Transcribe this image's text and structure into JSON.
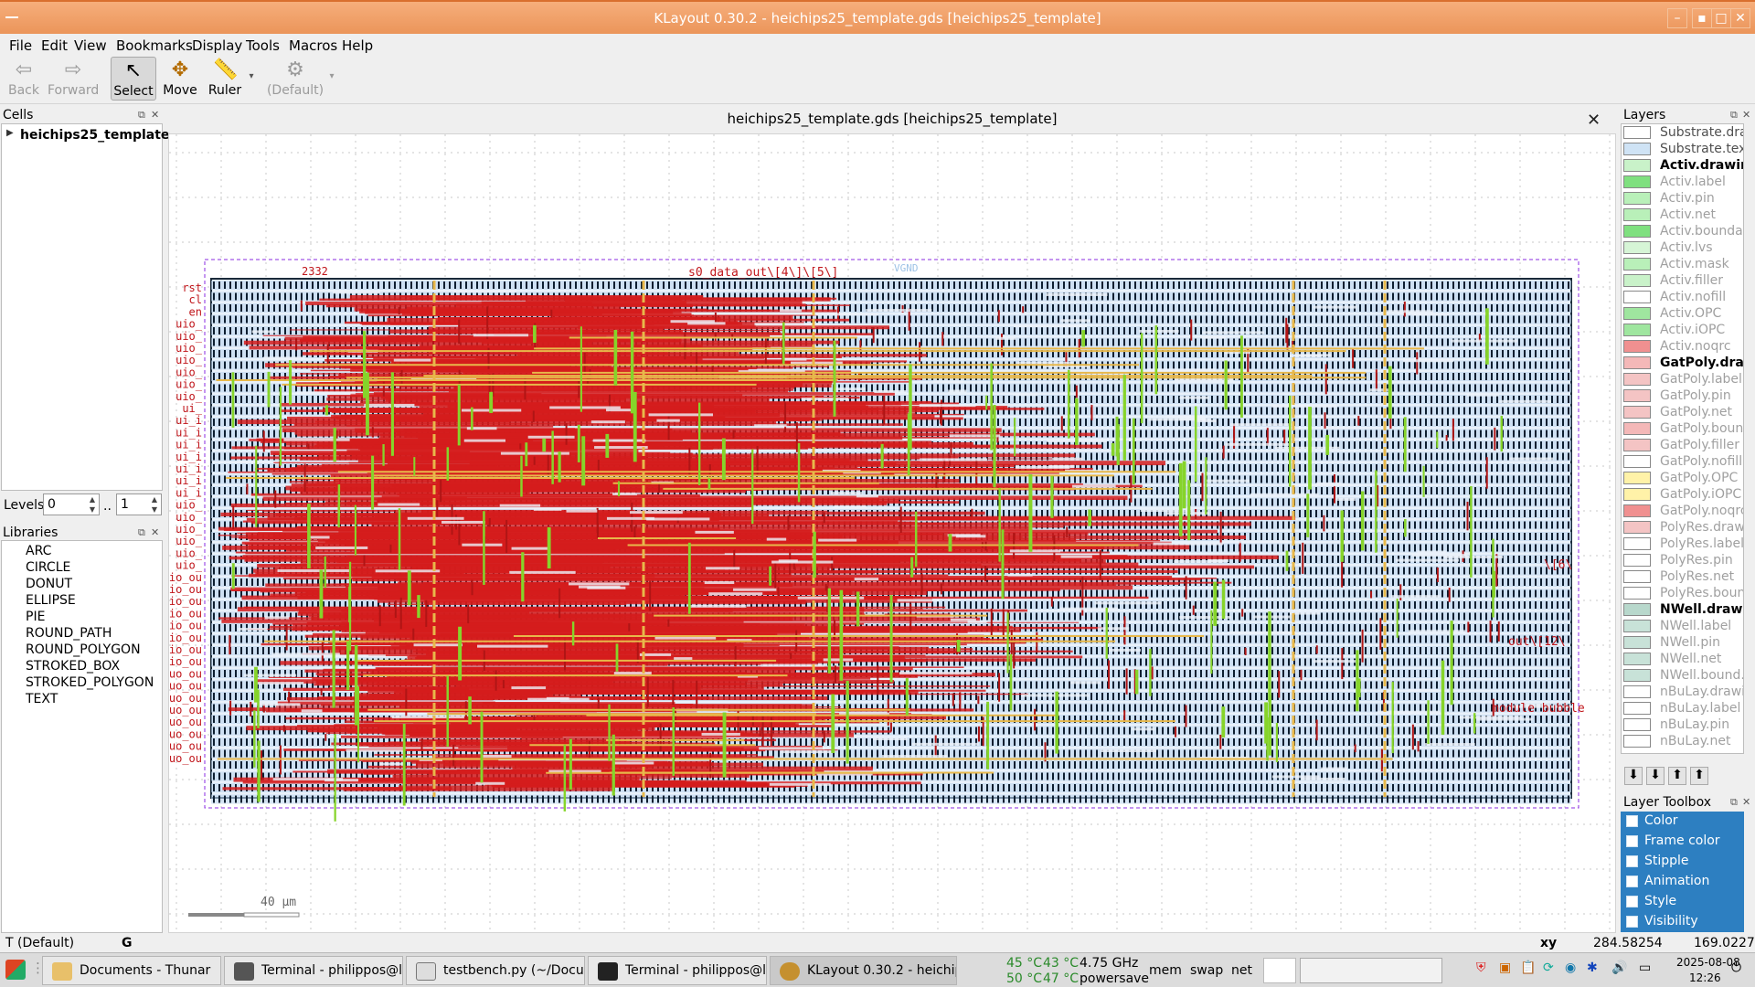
{
  "window": {
    "title": "KLayout 0.30.2 - heichips25_template.gds [heichips25_template]"
  },
  "menu": [
    "File",
    "Edit",
    "View",
    "Bookmarks",
    "Display",
    "Tools",
    "Macros",
    "Help"
  ],
  "toolbar": {
    "back": "Back",
    "forward": "Forward",
    "select": "Select",
    "move": "Move",
    "ruler": "Ruler",
    "default": "(Default)"
  },
  "cells": {
    "title": "Cells",
    "root": "heichips25_template"
  },
  "levels": {
    "label": "Levels",
    "from": "0",
    "sep": "..",
    "to": "1"
  },
  "libraries": {
    "title": "Libraries",
    "items": [
      "ARC",
      "CIRCLE",
      "DONUT",
      "ELLIPSE",
      "PIE",
      "ROUND_PATH",
      "ROUND_POLYGON",
      "STROKED_BOX",
      "STROKED_POLYGON",
      "TEXT"
    ]
  },
  "view": {
    "tab_title": "heichips25_template.gds [heichips25_template]",
    "scale": "40 µm"
  },
  "layout_texts": {
    "pins_left": [
      "rst",
      "cl",
      "en",
      "uio_",
      "uio_",
      "uio_",
      "uio_",
      "uio_",
      "uio_",
      "uio_",
      "ui_",
      "ui_i",
      "ui_i",
      "ui_i",
      "ui_i",
      "ui_i",
      "ui_i",
      "ui_i",
      "uio_",
      "uio_",
      "uio_",
      "uio_",
      "uio_",
      "uio_",
      "io_ou",
      "io_ou",
      "io_ou",
      "io_ou",
      "io_ou",
      "io_ou",
      "io_ou",
      "io_ou",
      "uo_ou",
      "uo_ou",
      "uo_ou",
      "uo_ou",
      "uo_ou",
      "uo_ou",
      "uo_ou",
      "uo_ou"
    ],
    "top_label": "s0_data_out\\[4\\]\\[5\\]",
    "top_num": "2332",
    "vgnd": "VGND",
    "right_labels": [
      "\\[6\\",
      "out\\[12\\",
      "module bubble"
    ]
  },
  "layers": {
    "title": "Layers",
    "items": [
      {
        "name": "Substrate.dra...",
        "color": "#ffffff",
        "style": "m"
      },
      {
        "name": "Substrate.text",
        "color": "#cfe3f5",
        "style": "m"
      },
      {
        "name": "Activ.drawing",
        "color": "#c9f2c9",
        "style": "b"
      },
      {
        "name": "Activ.label",
        "color": "#7fe07f",
        "style": ""
      },
      {
        "name": "Activ.pin",
        "color": "#b9f0b9",
        "style": ""
      },
      {
        "name": "Activ.net",
        "color": "#b9f0b9",
        "style": ""
      },
      {
        "name": "Activ.boundary",
        "color": "#7fe07f",
        "style": ""
      },
      {
        "name": "Activ.lvs",
        "color": "#d6f5d6",
        "style": ""
      },
      {
        "name": "Activ.mask",
        "color": "#b9f0b9",
        "style": ""
      },
      {
        "name": "Activ.filler",
        "color": "#c9f2c9",
        "style": ""
      },
      {
        "name": "Activ.nofill",
        "color": "#ffffff",
        "style": ""
      },
      {
        "name": "Activ.OPC",
        "color": "#9fe69f",
        "style": ""
      },
      {
        "name": "Activ.iOPC",
        "color": "#9fe69f",
        "style": ""
      },
      {
        "name": "Activ.noqrc",
        "color": "#f09090",
        "style": ""
      },
      {
        "name": "GatPoly.dra...",
        "color": "#f4b8b8",
        "style": "b"
      },
      {
        "name": "GatPoly.label",
        "color": "#f4c4c4",
        "style": ""
      },
      {
        "name": "GatPoly.pin",
        "color": "#f4c4c4",
        "style": ""
      },
      {
        "name": "GatPoly.net",
        "color": "#f4c4c4",
        "style": ""
      },
      {
        "name": "GatPoly.boun...",
        "color": "#f4b8b8",
        "style": ""
      },
      {
        "name": "GatPoly.filler",
        "color": "#f4c4c4",
        "style": ""
      },
      {
        "name": "GatPoly.nofill",
        "color": "#ffffff",
        "style": ""
      },
      {
        "name": "GatPoly.OPC",
        "color": "#fff2a8",
        "style": ""
      },
      {
        "name": "GatPoly.iOPC",
        "color": "#fff2a8",
        "style": ""
      },
      {
        "name": "GatPoly.noqrc",
        "color": "#f09090",
        "style": ""
      },
      {
        "name": "PolyRes.draw...",
        "color": "#f4c4c4",
        "style": ""
      },
      {
        "name": "PolyRes.label",
        "color": "#ffffff",
        "style": ""
      },
      {
        "name": "PolyRes.pin",
        "color": "#ffffff",
        "style": ""
      },
      {
        "name": "PolyRes.net",
        "color": "#ffffff",
        "style": ""
      },
      {
        "name": "PolyRes.boun...",
        "color": "#ffffff",
        "style": ""
      },
      {
        "name": "NWell.drawi...",
        "color": "#b8d8cc",
        "style": "b"
      },
      {
        "name": "NWell.label",
        "color": "#c8e2d8",
        "style": ""
      },
      {
        "name": "NWell.pin",
        "color": "#c8e2d8",
        "style": ""
      },
      {
        "name": "NWell.net",
        "color": "#c8e2d8",
        "style": ""
      },
      {
        "name": "NWell.bound...",
        "color": "#c8e2d8",
        "style": ""
      },
      {
        "name": "nBuLay.drawi...",
        "color": "#ffffff",
        "style": ""
      },
      {
        "name": "nBuLay.label",
        "color": "#ffffff",
        "style": ""
      },
      {
        "name": "nBuLay.pin",
        "color": "#ffffff",
        "style": ""
      },
      {
        "name": "nBuLay.net",
        "color": "#ffffff",
        "style": ""
      }
    ]
  },
  "layer_toolbox": {
    "title": "Layer Toolbox",
    "items": [
      "Color",
      "Frame color",
      "Stipple",
      "Animation",
      "Style",
      "Visibility"
    ]
  },
  "status": {
    "left": "T (Default)",
    "mode": "G",
    "xy_label": "xy",
    "x": "284.58254",
    "y": "169.02277"
  },
  "taskbar": {
    "tasks": [
      "Documents - Thunar",
      "Terminal - philippos@le...",
      "testbench.py (~/Docum...",
      "Terminal - philippos@le...",
      "KLayout 0.30.2 - heichip..."
    ],
    "temps": [
      "45 °C",
      "43 °C",
      "4.75 GHz",
      "50 °C",
      "47 °C",
      "powersave"
    ],
    "mem": "mem",
    "swap": "swap",
    "net": "net",
    "date": "2025-08-08",
    "time": "12:26"
  },
  "colors": {
    "titlebar": "#eb955a",
    "accent": "#2d7fc1",
    "metal": "#d51c1c",
    "poly": "#86d42a",
    "rail": "#e8b84a"
  }
}
